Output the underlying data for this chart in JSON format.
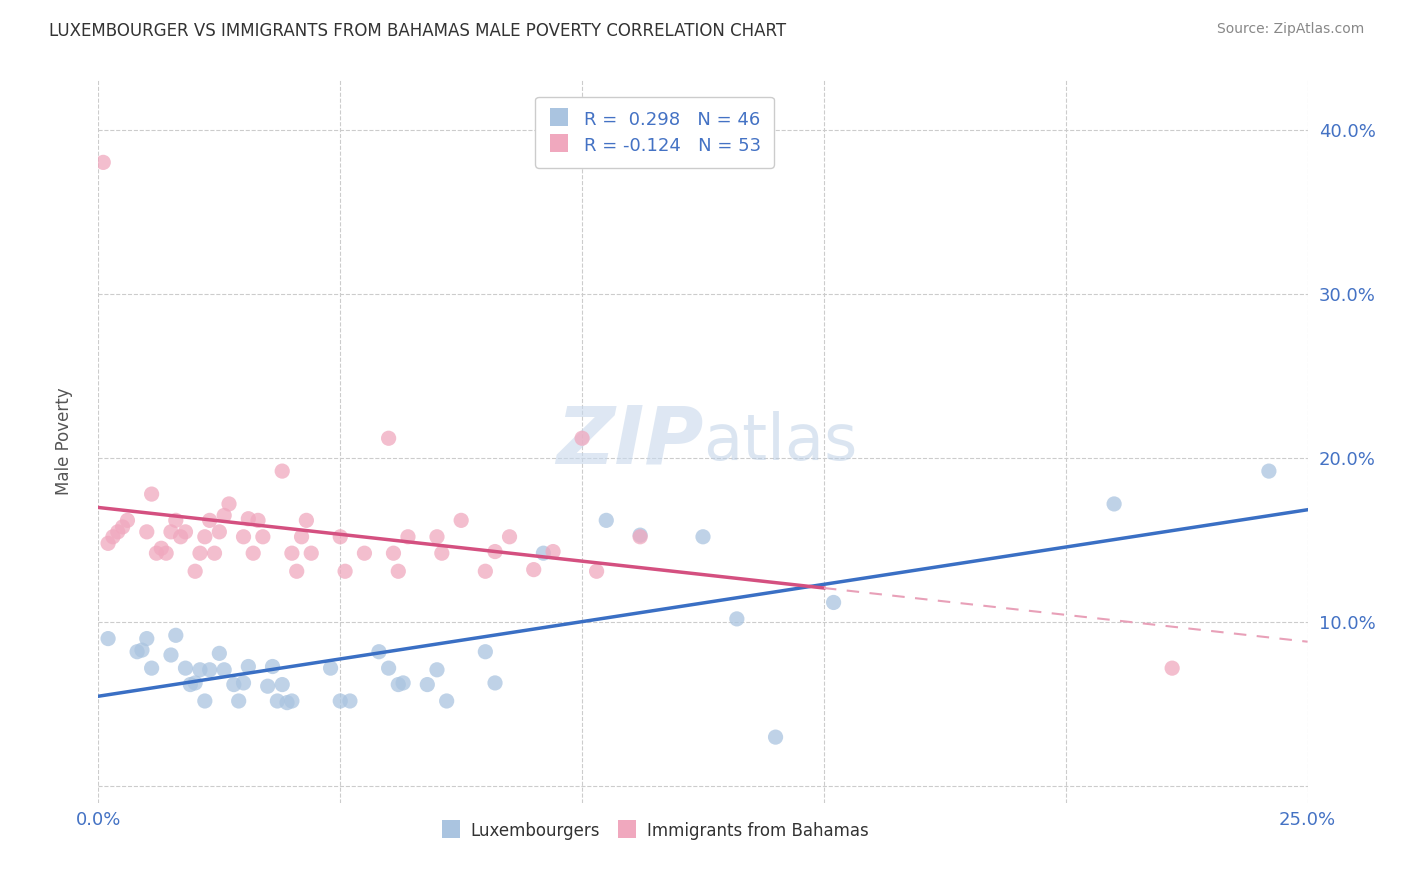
{
  "title": "LUXEMBOURGER VS IMMIGRANTS FROM BAHAMAS MALE POVERTY CORRELATION CHART",
  "source": "Source: ZipAtlas.com",
  "ylabel": "Male Poverty",
  "xlim": [
    0.0,
    0.25
  ],
  "ylim": [
    -0.01,
    0.43
  ],
  "ytick_positions": [
    0.0,
    0.1,
    0.2,
    0.3,
    0.4
  ],
  "xtick_positions": [
    0.0,
    0.05,
    0.1,
    0.15,
    0.2,
    0.25
  ],
  "background_color": "#ffffff",
  "grid_color": "#cccccc",
  "blue_scatter_color": "#aac4e0",
  "pink_scatter_color": "#f0a8be",
  "blue_line_color": "#3a6fc4",
  "pink_line_color": "#d45080",
  "pink_dash_color": "#e8a0b8",
  "R_blue": 0.298,
  "N_blue": 46,
  "R_pink": -0.124,
  "N_pink": 53,
  "tick_color": "#4472c4",
  "luxembourger_x": [
    0.002,
    0.008,
    0.009,
    0.01,
    0.011,
    0.015,
    0.016,
    0.018,
    0.019,
    0.02,
    0.021,
    0.022,
    0.023,
    0.025,
    0.026,
    0.028,
    0.029,
    0.03,
    0.031,
    0.035,
    0.036,
    0.037,
    0.038,
    0.039,
    0.04,
    0.048,
    0.05,
    0.052,
    0.058,
    0.06,
    0.062,
    0.063,
    0.068,
    0.07,
    0.072,
    0.08,
    0.082,
    0.092,
    0.105,
    0.112,
    0.125,
    0.132,
    0.14,
    0.152,
    0.21,
    0.242
  ],
  "luxembourger_y": [
    0.09,
    0.082,
    0.083,
    0.09,
    0.072,
    0.08,
    0.092,
    0.072,
    0.062,
    0.063,
    0.071,
    0.052,
    0.071,
    0.081,
    0.071,
    0.062,
    0.052,
    0.063,
    0.073,
    0.061,
    0.073,
    0.052,
    0.062,
    0.051,
    0.052,
    0.072,
    0.052,
    0.052,
    0.082,
    0.072,
    0.062,
    0.063,
    0.062,
    0.071,
    0.052,
    0.082,
    0.063,
    0.142,
    0.162,
    0.153,
    0.152,
    0.102,
    0.03,
    0.112,
    0.172,
    0.192
  ],
  "bahamas_x": [
    0.001,
    0.002,
    0.003,
    0.004,
    0.005,
    0.006,
    0.01,
    0.011,
    0.012,
    0.013,
    0.014,
    0.015,
    0.016,
    0.017,
    0.018,
    0.02,
    0.021,
    0.022,
    0.023,
    0.024,
    0.025,
    0.026,
    0.027,
    0.03,
    0.031,
    0.032,
    0.033,
    0.034,
    0.038,
    0.04,
    0.041,
    0.042,
    0.043,
    0.044,
    0.05,
    0.051,
    0.055,
    0.06,
    0.061,
    0.062,
    0.064,
    0.07,
    0.071,
    0.075,
    0.08,
    0.082,
    0.085,
    0.09,
    0.094,
    0.1,
    0.103,
    0.112,
    0.222
  ],
  "bahamas_y": [
    0.38,
    0.148,
    0.152,
    0.155,
    0.158,
    0.162,
    0.155,
    0.178,
    0.142,
    0.145,
    0.142,
    0.155,
    0.162,
    0.152,
    0.155,
    0.131,
    0.142,
    0.152,
    0.162,
    0.142,
    0.155,
    0.165,
    0.172,
    0.152,
    0.163,
    0.142,
    0.162,
    0.152,
    0.192,
    0.142,
    0.131,
    0.152,
    0.162,
    0.142,
    0.152,
    0.131,
    0.142,
    0.212,
    0.142,
    0.131,
    0.152,
    0.152,
    0.142,
    0.162,
    0.131,
    0.143,
    0.152,
    0.132,
    0.143,
    0.212,
    0.131,
    0.152,
    0.072
  ]
}
